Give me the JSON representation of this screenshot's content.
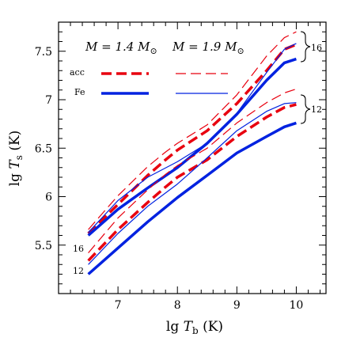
{
  "chart_data": {
    "type": "line",
    "xlabel": "lg T_b (K)",
    "ylabel": "lg T_s (K)",
    "xlim": [
      6.0,
      10.5
    ],
    "ylim": [
      5.0,
      7.8
    ],
    "xticks": [
      {
        "value": 7,
        "label": "7"
      },
      {
        "value": 8,
        "label": "8"
      },
      {
        "value": 9,
        "label": "9"
      },
      {
        "value": 10,
        "label": "10"
      }
    ],
    "yticks": [
      {
        "value": 5.5,
        "label": "5.5"
      },
      {
        "value": 6,
        "label": "6"
      },
      {
        "value": 6.5,
        "label": "6.5"
      },
      {
        "value": 7,
        "label": "7"
      },
      {
        "value": 7.5,
        "label": "7.5"
      }
    ],
    "legend": {
      "headers": [
        "M = 1.4 M⊙",
        "M = 1.9 M⊙"
      ],
      "rows": [
        "acc",
        "Fe"
      ]
    },
    "annotations": [
      "16",
      "12",
      "16",
      "12"
    ],
    "series": [
      {
        "composition": "acc",
        "mass": 1.4,
        "group": 16,
        "color": "#e8000f",
        "style": "thick-dashed",
        "x": [
          6.5,
          7.0,
          7.5,
          7.8,
          8.0,
          8.5,
          9.0,
          9.5,
          9.8,
          10.0
        ],
        "y": [
          5.62,
          5.92,
          6.22,
          6.38,
          6.48,
          6.68,
          6.96,
          7.3,
          7.52,
          7.57
        ]
      },
      {
        "composition": "Fe",
        "mass": 1.4,
        "group": 16,
        "color": "#0022e0",
        "style": "thick-solid",
        "x": [
          6.5,
          7.0,
          7.5,
          8.0,
          8.5,
          9.0,
          9.5,
          9.8,
          10.0
        ],
        "y": [
          5.6,
          5.87,
          6.09,
          6.3,
          6.55,
          6.85,
          7.2,
          7.38,
          7.42
        ]
      },
      {
        "composition": "acc",
        "mass": 1.9,
        "group": 16,
        "color": "#e8000f",
        "style": "thin-dashed",
        "x": [
          6.5,
          7.0,
          7.5,
          7.8,
          8.0,
          8.5,
          9.0,
          9.5,
          9.8,
          10.0
        ],
        "y": [
          5.66,
          6.01,
          6.31,
          6.46,
          6.55,
          6.74,
          7.05,
          7.45,
          7.64,
          7.7
        ]
      },
      {
        "composition": "Fe",
        "mass": 1.9,
        "group": 16,
        "color": "#0022e0",
        "style": "thin-solid",
        "x": [
          6.5,
          7.0,
          7.5,
          8.0,
          8.5,
          9.0,
          9.5,
          9.8,
          10.0
        ],
        "y": [
          5.63,
          5.96,
          6.2,
          6.36,
          6.55,
          6.86,
          7.28,
          7.52,
          7.58
        ]
      },
      {
        "composition": "acc",
        "mass": 1.4,
        "group": 12,
        "color": "#e8000f",
        "style": "thick-dashed",
        "x": [
          6.5,
          7.0,
          7.5,
          7.8,
          8.0,
          8.5,
          9.0,
          9.5,
          9.8,
          10.0
        ],
        "y": [
          5.34,
          5.66,
          5.94,
          6.1,
          6.2,
          6.38,
          6.62,
          6.82,
          6.92,
          6.95
        ]
      },
      {
        "composition": "Fe",
        "mass": 1.4,
        "group": 12,
        "color": "#0022e0",
        "style": "thick-solid",
        "x": [
          6.5,
          7.0,
          7.5,
          8.0,
          8.5,
          9.0,
          9.5,
          9.8,
          10.0
        ],
        "y": [
          5.2,
          5.47,
          5.74,
          5.99,
          6.22,
          6.45,
          6.62,
          6.72,
          6.76
        ]
      },
      {
        "composition": "acc",
        "mass": 1.9,
        "group": 12,
        "color": "#e8000f",
        "style": "thin-dashed",
        "x": [
          6.5,
          7.0,
          7.5,
          7.8,
          8.0,
          8.5,
          9.0,
          9.5,
          9.8,
          10.0
        ],
        "y": [
          5.42,
          5.78,
          6.07,
          6.23,
          6.32,
          6.5,
          6.76,
          6.97,
          7.07,
          7.11
        ]
      },
      {
        "composition": "Fe",
        "mass": 1.9,
        "group": 12,
        "color": "#0022e0",
        "style": "thin-solid",
        "x": [
          6.5,
          7.0,
          7.5,
          8.0,
          8.5,
          9.0,
          9.5,
          9.8,
          10.0
        ],
        "y": [
          5.3,
          5.62,
          5.9,
          6.13,
          6.4,
          6.68,
          6.88,
          6.96,
          6.97
        ]
      }
    ]
  }
}
